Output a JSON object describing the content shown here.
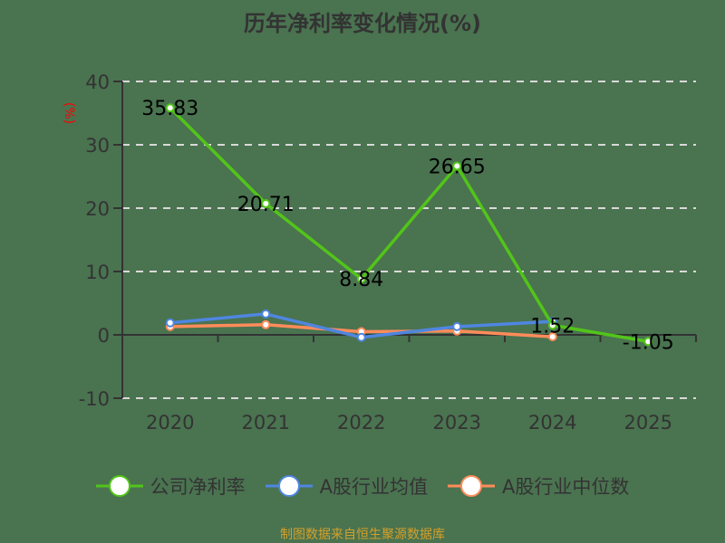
{
  "title": "历年净利率变化情况(%)",
  "source": "制图数据来自恒生聚源数据库",
  "colors": {
    "background": "#4a7350",
    "company": "#52c41a",
    "industry_avg": "#4f86e0",
    "industry_median": "#ff8c5a",
    "unit_label": "#ff0000",
    "axis": "#333333",
    "grid": "#d9d9d9"
  },
  "chart_data": {
    "type": "line",
    "title": "历年净利率变化情况(%)",
    "xlabel": "",
    "ylabel": "(%)",
    "categories": [
      "2020",
      "2021",
      "2022",
      "2023",
      "2024",
      "2025"
    ],
    "ylim": [
      -10,
      40
    ],
    "yticks": [
      40,
      30,
      20,
      10,
      0,
      -10
    ],
    "grid": true,
    "legend_position": "bottom",
    "series": [
      {
        "name": "公司净利率",
        "values": [
          35.83,
          20.71,
          8.84,
          26.65,
          1.52,
          -1.05
        ],
        "labels": [
          "35.83",
          "20.71",
          "8.84",
          "26.65",
          "1.52",
          "-1.05"
        ],
        "color": "#52c41a"
      },
      {
        "name": "A股行业均值",
        "values": [
          1.9,
          3.3,
          -0.4,
          1.3,
          2.1,
          null
        ],
        "color": "#4f86e0"
      },
      {
        "name": "A股行业中位数",
        "values": [
          1.3,
          1.6,
          0.5,
          0.6,
          -0.3,
          null
        ],
        "color": "#ff8c5a"
      }
    ]
  },
  "legend": {
    "items": [
      {
        "label": "公司净利率"
      },
      {
        "label": "A股行业均值"
      },
      {
        "label": "A股行业中位数"
      }
    ]
  }
}
